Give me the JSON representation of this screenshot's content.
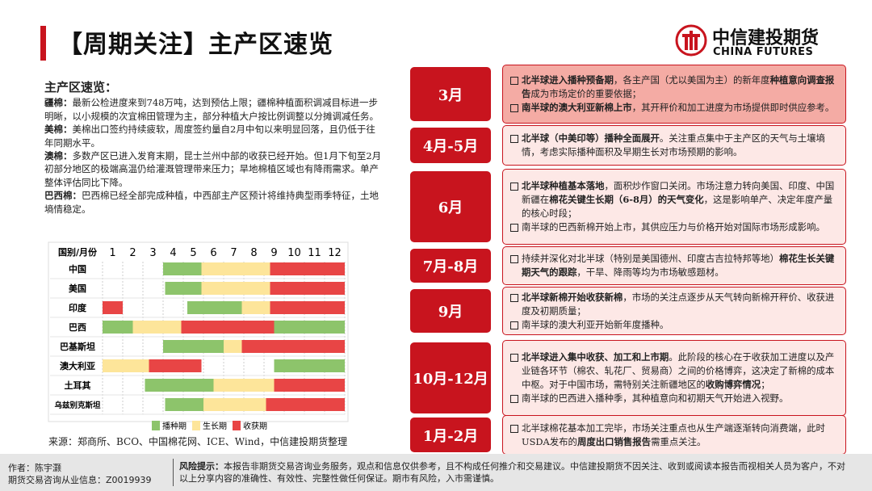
{
  "header": {
    "title": "【周期关注】主产区速览",
    "logo_cn": "中信建投期货",
    "logo_en": "CHINA FUTURES"
  },
  "summary": {
    "heading": "主产区速览：",
    "paragraphs": [
      {
        "name": "疆棉：",
        "text": "最新公检进度来到748万吨，达到预估上限；疆棉种植面积调减目标进一步明晰，以小规模的次宜棉田管理为主，部分种植大户按比例调整以分摊调减任务。"
      },
      {
        "name": "美棉：",
        "text": "美棉出口签约持续疲软，周度签约量自2月中旬以来明显回落，且仍低于往年同期水平。"
      },
      {
        "name": "澳棉：",
        "text": "多数产区已进入发育末期，昆士兰州中部的收获已经开始。但1月下旬至2月初部分地区的极端高温仍给灌溉管理带来压力；旱地棉植区域也有降雨需求。单产整体评估同比下降。"
      },
      {
        "name": "巴西棉：",
        "text": "巴西棉已经全部完成种植，中西部主产区预计将维持典型雨季特征，土地墒情稳定。"
      }
    ]
  },
  "calendar": {
    "header": "国别/月份",
    "months": [
      1,
      2,
      3,
      4,
      5,
      6,
      7,
      8,
      9,
      10,
      11,
      12
    ],
    "legend": [
      {
        "name": "播种期",
        "color": "#8dc46b"
      },
      {
        "name": "生长期",
        "color": "#fde59a"
      },
      {
        "name": "收获期",
        "color": "#e84545"
      }
    ],
    "rows": [
      {
        "name": "中国",
        "segments": [
          {
            "phase": 0,
            "from": 3,
            "to": 4.9
          },
          {
            "phase": 1,
            "from": 4.9,
            "to": 8.3
          },
          {
            "phase": 2,
            "from": 8.3,
            "to": 12
          }
        ]
      },
      {
        "name": "美国",
        "segments": [
          {
            "phase": 0,
            "from": 3.1,
            "to": 4.9
          },
          {
            "phase": 1,
            "from": 4.9,
            "to": 8.3
          },
          {
            "phase": 2,
            "from": 8.3,
            "to": 12
          }
        ]
      },
      {
        "name": "印度",
        "segments": [
          {
            "phase": 2,
            "from": 0,
            "to": 1
          },
          {
            "phase": 0,
            "from": 4.2,
            "to": 6.9
          },
          {
            "phase": 1,
            "from": 6.9,
            "to": 8.3
          },
          {
            "phase": 2,
            "from": 8.3,
            "to": 12
          }
        ]
      },
      {
        "name": "巴西",
        "segments": [
          {
            "phase": 0,
            "from": 0,
            "to": 1.5
          },
          {
            "phase": 1,
            "from": 1.5,
            "to": 3.9
          },
          {
            "phase": 2,
            "from": 3.9,
            "to": 8.5
          },
          {
            "phase": 0,
            "from": 8.5,
            "to": 12
          }
        ]
      },
      {
        "name": "巴基斯坦",
        "segments": [
          {
            "phase": 0,
            "from": 3,
            "to": 6
          },
          {
            "phase": 1,
            "from": 6,
            "to": 6.9
          },
          {
            "phase": 2,
            "from": 6.9,
            "to": 12
          }
        ]
      },
      {
        "name": "澳大利亚",
        "segments": [
          {
            "phase": 1,
            "from": 0,
            "to": 2.3
          },
          {
            "phase": 2,
            "from": 2.3,
            "to": 4.9
          },
          {
            "phase": 0,
            "from": 8.5,
            "to": 12
          }
        ]
      },
      {
        "name": "土耳其",
        "segments": [
          {
            "phase": 0,
            "from": 2.1,
            "to": 5.5
          },
          {
            "phase": 1,
            "from": 5.5,
            "to": 8.5
          },
          {
            "phase": 2,
            "from": 8.5,
            "to": 12
          }
        ]
      },
      {
        "name": "乌兹别克斯坦",
        "segments": [
          {
            "phase": 0,
            "from": 3.1,
            "to": 5
          },
          {
            "phase": 1,
            "from": 5,
            "to": 8.1
          },
          {
            "phase": 2,
            "from": 8.1,
            "to": 12
          }
        ]
      }
    ]
  },
  "source": "来源：郑商所、BCO、中国棉花网、ICE、Wind，中信建投期货整理",
  "timeline": [
    {
      "period": "3月",
      "bullets": [
        [
          {
            "t": "北半球进入播种预备期",
            "b": true
          },
          {
            "t": "，各主产国（尤以美国为主）的新年度"
          },
          {
            "t": "种植意向调查报告",
            "b": true
          },
          {
            "t": "成为市场定价的重要依据；"
          }
        ],
        [
          {
            "t": "南半球的澳大利亚新棉上市",
            "b": true
          },
          {
            "t": "，其开秤价和加工进度为市场提供即时供应参考。"
          }
        ]
      ]
    },
    {
      "period": "4月-5月",
      "bullets": [
        [
          {
            "t": "北半球（中美印等）播种全面展开",
            "b": true
          },
          {
            "t": "。关注重点集中于主产区的天气与土壤墒情，考虑实际播种面积及早期生长对市场预期的影响。"
          }
        ]
      ]
    },
    {
      "period": "6月",
      "bullets": [
        [
          {
            "t": "北半球种植基本落地",
            "b": true
          },
          {
            "t": "，面积炒作窗口关闭。市场注意力转向美国、印度、中国新疆在"
          },
          {
            "t": "棉花关键生长期（6-8月）的天气变化",
            "b": true
          },
          {
            "t": "，这是影响单产、决定年度产量的核心时段；"
          }
        ],
        [
          {
            "t": "南半球的巴西新棉开始上市，其供应压力与价格开始对国际市场形成影响。"
          }
        ]
      ]
    },
    {
      "period": "7月-8月",
      "bullets": [
        [
          {
            "t": "持续并深化对北半球（特别是美国德州、印度古吉拉特邦等地）"
          },
          {
            "t": "棉花生长关键期天气的跟踪",
            "b": true
          },
          {
            "t": "，干旱、降雨等均为市场敏感题材。"
          }
        ]
      ]
    },
    {
      "period": "9月",
      "bullets": [
        [
          {
            "t": "北半球新棉开始收获新棉",
            "b": true
          },
          {
            "t": "，市场的关注点逐步从天气转向新棉开秤价、收获进度及初期质量；"
          }
        ],
        [
          {
            "t": "南半球的澳大利亚开始新年度播种。"
          }
        ]
      ]
    },
    {
      "period": "10月-12月",
      "bullets": [
        [
          {
            "t": "北半球进入集中收获、加工和上市期",
            "b": true
          },
          {
            "t": "。此阶段的核心在于收获加工进度以及产业链各环节（棉农、轧花厂、贸易商）之间的价格博弈，这决定了新棉的成本中枢。对于中国市场，需特别关注新疆地区的"
          },
          {
            "t": "收购博弈情况",
            "b": true
          },
          {
            "t": "；"
          }
        ],
        [
          {
            "t": "南半球的巴西进入播种季，其种植意向和初期天气开始进入视野。"
          }
        ]
      ]
    },
    {
      "period": "1月-2月",
      "bullets": [
        [
          {
            "t": "北半球棉花基本加工完毕，市场关注重点也从生产端逐渐转向消费端，此时USDA发布的"
          },
          {
            "t": "周度出口销售报告",
            "b": true
          },
          {
            "t": "需重点关注。"
          }
        ]
      ]
    }
  ],
  "footer": {
    "author": "作者：陈宇灏",
    "license": "期货交易咨询从业信息：Z0019939",
    "risk_label": "风险提示：",
    "risk_text": "本报告非期货交易咨询业务服务，观点和信息仅供参考，且不构成任何推介和交易建议。中信建投期货不因关注、收到或阅读本报告而视相关人员为客户，不对以上分享内容的准确性、有效性、完整性做任何保证。期市有风险，入市需谨慎。"
  }
}
